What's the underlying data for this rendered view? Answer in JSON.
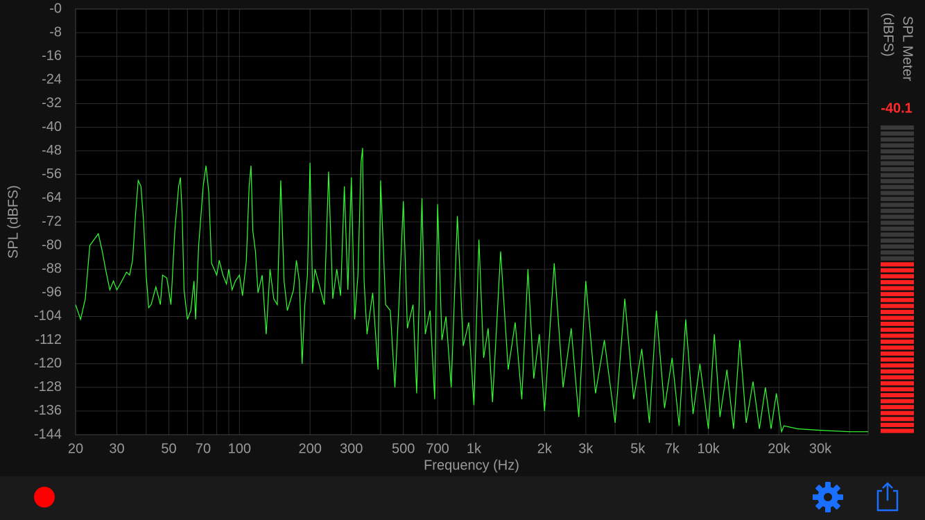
{
  "chart_data": {
    "type": "line",
    "xlabel": "Frequency (Hz)",
    "ylabel": "SPL (dBFS)",
    "xscale": "log",
    "color": "#33ff33",
    "xlim": [
      20,
      48000
    ],
    "ylim": [
      -144,
      0
    ],
    "xticks": [
      20,
      30,
      50,
      70,
      100,
      200,
      300,
      500,
      700,
      {
        "value": 1000,
        "label": "1k"
      },
      {
        "value": 2000,
        "label": "2k"
      },
      {
        "value": 3000,
        "label": "3k"
      },
      {
        "value": 5000,
        "label": "5k"
      },
      {
        "value": 7000,
        "label": "7k"
      },
      {
        "value": 10000,
        "label": "10k"
      },
      {
        "value": 20000,
        "label": "20k"
      },
      {
        "value": 30000,
        "label": "30k"
      }
    ],
    "xgrid_minor": [
      40,
      60,
      80,
      90,
      400,
      600,
      800,
      900,
      4000,
      6000,
      8000,
      9000,
      40000
    ],
    "yticks": [
      {
        "value": 0,
        "label": "-0"
      },
      -8,
      -16,
      -24,
      -32,
      -40,
      -48,
      -56,
      -64,
      -72,
      -80,
      -88,
      -96,
      -104,
      -112,
      -120,
      -128,
      -136,
      -144
    ],
    "grid": true,
    "x": [
      20,
      21,
      22,
      23,
      25,
      26,
      27,
      28,
      29,
      30,
      31,
      33,
      34,
      35,
      36,
      37,
      38,
      39,
      40,
      41,
      42,
      44,
      45,
      46,
      47,
      49,
      51,
      53,
      55,
      56,
      57,
      58,
      60,
      62,
      64,
      65,
      67,
      70,
      72,
      74,
      76,
      78,
      80,
      82,
      85,
      88,
      90,
      93,
      96,
      100,
      103,
      107,
      110,
      112,
      114,
      117,
      120,
      125,
      130,
      135,
      140,
      145,
      150,
      155,
      160,
      170,
      175,
      180,
      185,
      190,
      195,
      200,
      205,
      210,
      220,
      230,
      240,
      250,
      260,
      270,
      280,
      290,
      300,
      310,
      320,
      330,
      335,
      340,
      350,
      370,
      390,
      400,
      420,
      440,
      460,
      480,
      500,
      520,
      550,
      570,
      600,
      620,
      650,
      680,
      700,
      730,
      760,
      800,
      850,
      900,
      950,
      1000,
      1050,
      1100,
      1150,
      1200,
      1300,
      1400,
      1500,
      1600,
      1700,
      1800,
      1900,
      2000,
      2200,
      2400,
      2600,
      2800,
      3000,
      3300,
      3600,
      4000,
      4400,
      4800,
      5200,
      5600,
      6000,
      6500,
      7000,
      7500,
      8000,
      8600,
      9200,
      10000,
      10600,
      11200,
      12000,
      12800,
      13600,
      14500,
      15500,
      16500,
      17500,
      18500,
      19500,
      20500,
      21000,
      24000,
      30000,
      40000,
      48000
    ],
    "values": [
      -100,
      -105,
      -98,
      -80,
      -76,
      -82,
      -89,
      -95,
      -92,
      -95,
      -93,
      -89,
      -90,
      -85,
      -70,
      -58,
      -60,
      -72,
      -90,
      -101,
      -100,
      -94,
      -97,
      -100,
      -90,
      -91,
      -100,
      -75,
      -60,
      -57,
      -70,
      -95,
      -105,
      -102,
      -92,
      -105,
      -80,
      -60,
      -53,
      -62,
      -86,
      -88,
      -90,
      -85,
      -90,
      -93,
      -88,
      -95,
      -92,
      -90,
      -97,
      -85,
      -60,
      -53,
      -75,
      -82,
      -96,
      -90,
      -110,
      -88,
      -98,
      -100,
      -58,
      -92,
      -102,
      -95,
      -85,
      -92,
      -120,
      -100,
      -90,
      -52,
      -96,
      -88,
      -94,
      -100,
      -55,
      -98,
      -88,
      -97,
      -60,
      -95,
      -57,
      -105,
      -90,
      -52,
      -47,
      -92,
      -110,
      -96,
      -122,
      -58,
      -100,
      -102,
      -128,
      -98,
      -65,
      -108,
      -100,
      -130,
      -64,
      -110,
      -102,
      -132,
      -66,
      -112,
      -104,
      -128,
      -70,
      -114,
      -106,
      -134,
      -78,
      -118,
      -108,
      -133,
      -82,
      -122,
      -106,
      -132,
      -88,
      -125,
      -110,
      -136,
      -86,
      -128,
      -108,
      -138,
      -92,
      -130,
      -112,
      -140,
      -98,
      -132,
      -115,
      -140,
      -102,
      -135,
      -118,
      -141,
      -105,
      -137,
      -120,
      -142,
      -110,
      -138,
      -122,
      -142,
      -112,
      -140,
      -126,
      -142,
      -128,
      -142,
      -130,
      -143,
      -141,
      -142,
      -142.5,
      -143,
      -143
    ]
  },
  "meter": {
    "title_lines": [
      "SPL Meter",
      "(dBFS)"
    ],
    "value": -40.1,
    "lim": [
      -90,
      0
    ]
  }
}
